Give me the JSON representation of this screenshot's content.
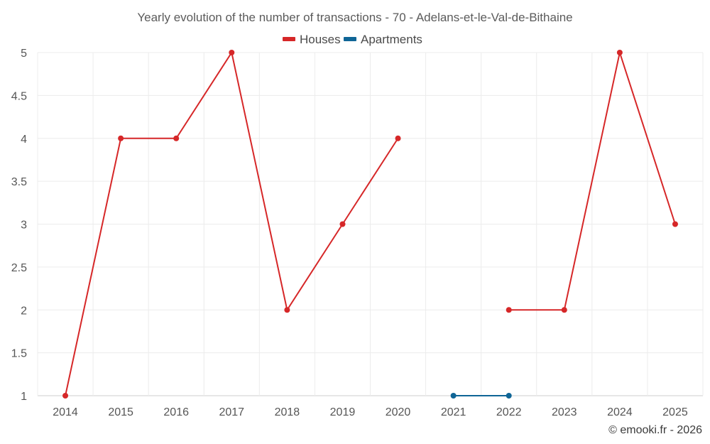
{
  "chart_data": {
    "type": "line",
    "title": "Yearly evolution of the number of transactions - 70 - Adelans-et-le-Val-de-Bithaine",
    "categories": [
      "2014",
      "2015",
      "2016",
      "2017",
      "2018",
      "2019",
      "2020",
      "2021",
      "2022",
      "2023",
      "2024",
      "2025"
    ],
    "ylim": [
      1,
      5
    ],
    "yticks": [
      "1",
      "1.5",
      "2",
      "2.5",
      "3",
      "3.5",
      "4",
      "4.5",
      "5"
    ],
    "legend_position": "top-center",
    "series": [
      {
        "name": "Houses",
        "color": "#d62728",
        "values": [
          1,
          4,
          4,
          5,
          2,
          3,
          4,
          null,
          2,
          2,
          5,
          3
        ]
      },
      {
        "name": "Apartments",
        "color": "#0f6596",
        "values": [
          null,
          null,
          null,
          null,
          null,
          null,
          null,
          1,
          1,
          null,
          null,
          null
        ]
      }
    ],
    "credit": "© emooki.fr - 2026"
  }
}
